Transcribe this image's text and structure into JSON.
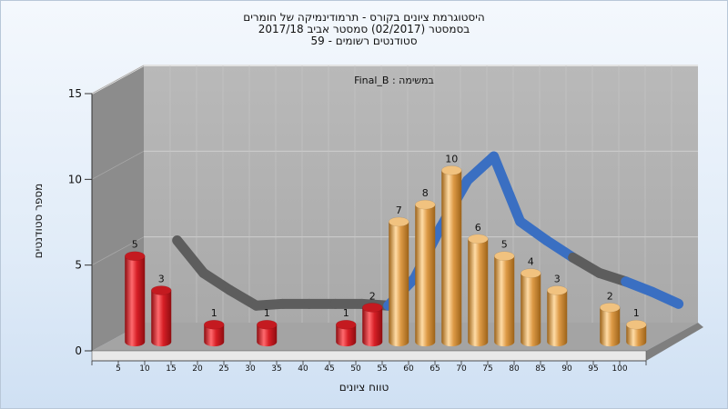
{
  "chart_data": {
    "type": "bar",
    "title_lines": [
      "היסטוגרמת ציונים בקורס - תרמודינמיקה של חומרים",
      "בסמסטר  (02/2017)  סמסטר אביב 2017/18",
      "סטודנטים רשומים - 59"
    ],
    "subtitle": "במשימה : Final_B",
    "xlabel": "טווח ציונים",
    "ylabel": "מספר סטודנטים",
    "x_ticks": [
      "5",
      "10",
      "15",
      "20",
      "25",
      "30",
      "35",
      "40",
      "45",
      "50",
      "55",
      "60",
      "65",
      "70",
      "75",
      "80",
      "85",
      "90",
      "95",
      "100"
    ],
    "y_ticks": [
      "0",
      "5",
      "10",
      "15"
    ],
    "ylim": [
      0,
      15
    ],
    "bars": [
      {
        "x": 5,
        "value": 5,
        "label": "5",
        "color": "red"
      },
      {
        "x": 10,
        "value": 3,
        "label": "3",
        "color": "red"
      },
      {
        "x": 20,
        "value": 1,
        "label": "1",
        "color": "red"
      },
      {
        "x": 30,
        "value": 1,
        "label": "1",
        "color": "red"
      },
      {
        "x": 45,
        "value": 1,
        "label": "1",
        "color": "red"
      },
      {
        "x": 50,
        "value": 2,
        "label": "2",
        "color": "red"
      },
      {
        "x": 55,
        "value": 7,
        "label": "7",
        "color": "orange"
      },
      {
        "x": 60,
        "value": 8,
        "label": "8",
        "color": "orange"
      },
      {
        "x": 65,
        "value": 10,
        "label": "10",
        "color": "orange"
      },
      {
        "x": 70,
        "value": 6,
        "label": "6",
        "color": "orange"
      },
      {
        "x": 75,
        "value": 5,
        "label": "5",
        "color": "orange"
      },
      {
        "x": 80,
        "value": 4,
        "label": "4",
        "color": "orange"
      },
      {
        "x": 85,
        "value": 3,
        "label": "3",
        "color": "orange"
      },
      {
        "x": 95,
        "value": 2,
        "label": "2",
        "color": "orange"
      },
      {
        "x": 100,
        "value": 1,
        "label": "1",
        "color": "orange"
      }
    ],
    "trend": [
      {
        "x": 10,
        "y": 5.7,
        "color": "blue"
      },
      {
        "x": 15,
        "y": 3.8,
        "color": "gray"
      },
      {
        "x": 20,
        "y": 2.8,
        "color": "gray"
      },
      {
        "x": 25,
        "y": 1.9,
        "color": "gray"
      },
      {
        "x": 30,
        "y": 2.0,
        "color": "gray"
      },
      {
        "x": 35,
        "y": 2.0,
        "color": "gray"
      },
      {
        "x": 40,
        "y": 2.0,
        "color": "gray"
      },
      {
        "x": 45,
        "y": 2.0,
        "color": "gray"
      },
      {
        "x": 50,
        "y": 1.9,
        "color": "gray"
      },
      {
        "x": 55,
        "y": 3.5,
        "color": "blue"
      },
      {
        "x": 60,
        "y": 6.5,
        "color": "blue"
      },
      {
        "x": 65,
        "y": 9.2,
        "color": "blue"
      },
      {
        "x": 70,
        "y": 10.6,
        "color": "blue"
      },
      {
        "x": 75,
        "y": 6.8,
        "color": "blue"
      },
      {
        "x": 80,
        "y": 5.7,
        "color": "blue"
      },
      {
        "x": 85,
        "y": 4.7,
        "color": "blue"
      },
      {
        "x": 90,
        "y": 3.8,
        "color": "gray"
      },
      {
        "x": 95,
        "y": 3.3,
        "color": "gray"
      },
      {
        "x": 100,
        "y": 2.7,
        "color": "blue"
      },
      {
        "x": 105,
        "y": 2.0,
        "color": "blue"
      }
    ],
    "grid": true,
    "colors": {
      "red": "#e0242a",
      "orange": "#e5a24a",
      "blue": "#3a6fc2",
      "gray": "#5d5d5d",
      "back_wall": "#b5b5b5",
      "side_wall": "#8c8c8c",
      "floor": "#a4a4a4"
    }
  }
}
